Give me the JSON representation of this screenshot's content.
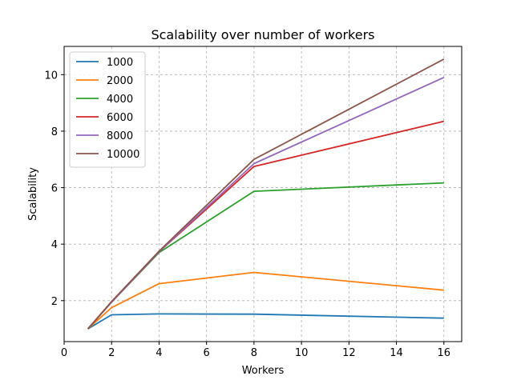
{
  "chart_data": {
    "type": "line",
    "title": "Scalability over number of workers",
    "xlabel": "Workers",
    "ylabel": "Scalability",
    "x": [
      1,
      2,
      4,
      8,
      16
    ],
    "xlim": [
      0,
      16.75
    ],
    "ylim": [
      0.55,
      11.0
    ],
    "xticks": [
      0,
      2,
      4,
      6,
      8,
      10,
      12,
      14,
      16
    ],
    "yticks": [
      2,
      4,
      6,
      8,
      10
    ],
    "grid": true,
    "legend_position": "top-left",
    "series": [
      {
        "name": "1000",
        "color": "#1f77b4",
        "values": [
          1.0,
          1.5,
          1.53,
          1.52,
          1.38
        ]
      },
      {
        "name": "2000",
        "color": "#ff7f0e",
        "values": [
          1.0,
          1.75,
          2.6,
          3.0,
          2.37
        ]
      },
      {
        "name": "4000",
        "color": "#2ca02c",
        "values": [
          1.0,
          1.95,
          3.7,
          5.87,
          6.17
        ]
      },
      {
        "name": "6000",
        "color": "#d62728",
        "values": [
          1.0,
          1.95,
          3.73,
          6.75,
          8.35
        ]
      },
      {
        "name": "8000",
        "color": "#9467bd",
        "values": [
          1.0,
          1.95,
          3.73,
          6.85,
          9.9
        ]
      },
      {
        "name": "10000",
        "color": "#8c564b",
        "values": [
          1.0,
          1.97,
          3.75,
          7.0,
          10.55
        ]
      }
    ]
  }
}
